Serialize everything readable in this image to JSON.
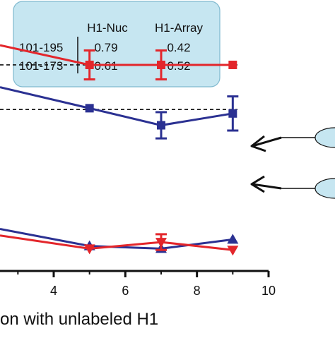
{
  "inset_table": {
    "columns": [
      "H1-Nuc",
      "H1-Array"
    ],
    "rows": [
      {
        "label": "101-195",
        "values": [
          "0.79",
          "0.42"
        ]
      },
      {
        "label": "101-173",
        "values": [
          "0.61",
          "0.52"
        ]
      }
    ],
    "background_color": "#c6e6f1",
    "border_color": "#7fb9cf"
  },
  "chart_data": {
    "type": "line",
    "xlabel": "on with unlabeled H1",
    "x_ticks": [
      4,
      6,
      8,
      10
    ],
    "xlim": [
      2.5,
      10
    ],
    "ylim": [
      0,
      1
    ],
    "grid": false,
    "reference_lines": [
      {
        "y": 0.785,
        "style": "dashed",
        "color": "#111111"
      },
      {
        "y": 0.615,
        "style": "dashed",
        "color": "#111111"
      }
    ],
    "series": [
      {
        "marker": "square",
        "color": "#e3262b",
        "x": [
          2.5,
          5,
          7,
          9
        ],
        "y": [
          0.86,
          0.785,
          0.785,
          0.785
        ],
        "err": [
          0,
          0.055,
          0.055,
          0
        ]
      },
      {
        "marker": "square",
        "color": "#2b3192",
        "x": [
          2.5,
          5,
          7,
          9
        ],
        "y": [
          0.7,
          0.62,
          0.555,
          0.6
        ],
        "err": [
          0,
          0,
          0.05,
          0.065
        ]
      },
      {
        "marker": "triangle-up",
        "color": "#2b3192",
        "x": [
          2.5,
          5,
          7,
          9
        ],
        "y": [
          0.16,
          0.095,
          0.085,
          0.12
        ],
        "err": [
          0,
          0,
          0,
          0
        ]
      },
      {
        "marker": "triangle-down",
        "color": "#e3262b",
        "x": [
          2.5,
          5,
          7,
          9
        ],
        "y": [
          0.135,
          0.085,
          0.11,
          0.08
        ],
        "err": [
          0,
          0,
          0.03,
          0
        ]
      }
    ]
  },
  "colors": {
    "axis": "#111111",
    "arrow": "#111111",
    "cartoon": "#c6e6f1"
  }
}
